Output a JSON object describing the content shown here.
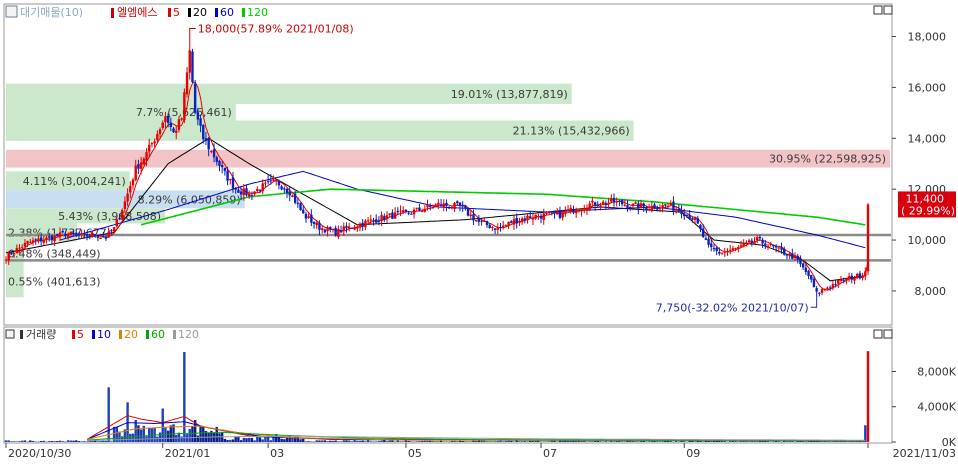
{
  "price_panel": {
    "header_icon": "price-chart-icon",
    "indicator_label": "대기매물(10)",
    "stock_name": "엘엠에스",
    "ma_legend": [
      {
        "period": "5",
        "color": "#e60000"
      },
      {
        "period": "20",
        "color": "#000000"
      },
      {
        "period": "60",
        "color": "#0000cc"
      },
      {
        "period": "120",
        "color": "#00cc00"
      }
    ],
    "y_ticks": [
      "18,000",
      "16,000",
      "14,000",
      "12,000",
      "10,000",
      "8,000"
    ],
    "current_price": "11,400",
    "current_change": "( 29.99%)",
    "max_annotation": "18,000(57.89% 2021/01/08)",
    "min_annotation": "7,750(-32.02% 2021/10/07)",
    "overhang": [
      {
        "label": "19.01% (13,877,819)",
        "low": 15350,
        "high": 16150,
        "width_frac": 0.64,
        "color": "#cce8cc"
      },
      {
        "label": "7.7% (5,626,461)",
        "low": 14700,
        "high": 15350,
        "width_frac": 0.26,
        "color": "#cce8cc"
      },
      {
        "label": "21.13% (15,432,966)",
        "low": 13900,
        "high": 14700,
        "width_frac": 0.71,
        "color": "#cce8cc"
      },
      {
        "label": "30.95% (22,598,925)",
        "low": 12850,
        "high": 13550,
        "width_frac": 1.0,
        "color": "#f2c4c8"
      },
      {
        "label": "4.11% (3,004,241)",
        "low": 11950,
        "high": 12700,
        "width_frac": 0.14,
        "color": "#cce8cc"
      },
      {
        "label": "8.29% (6,050,859)",
        "low": 11250,
        "high": 11950,
        "width_frac": 0.27,
        "color": "#c7dff0"
      },
      {
        "label": "5.43% (3,968,508)",
        "low": 10650,
        "high": 11250,
        "width_frac": 0.18,
        "color": "#cce8cc"
      },
      {
        "label": "2.38% (1,737,677)",
        "low": 9950,
        "high": 10650,
        "width_frac": 0.08,
        "color": "#cce8cc"
      },
      {
        "label": "0.48% (348,449)",
        "low": 9000,
        "high": 9950,
        "width_frac": 0.02,
        "color": "#cce8cc"
      },
      {
        "label": "0.55% (401,613)",
        "low": 7750,
        "high": 9000,
        "width_frac": 0.02,
        "color": "#cce8cc"
      }
    ],
    "support_lines": [
      10200,
      9200
    ]
  },
  "volume_panel": {
    "header_icon": "volume-chart-icon",
    "title": "거래량",
    "ma_legend": [
      {
        "period": "5",
        "color": "#e60000"
      },
      {
        "period": "10",
        "color": "#0000cc"
      },
      {
        "period": "20",
        "color": "#e08000"
      },
      {
        "period": "60",
        "color": "#00aa00"
      },
      {
        "period": "120",
        "color": "#999999"
      }
    ],
    "y_ticks": [
      "8,000K",
      "4,000K",
      "0K"
    ]
  },
  "x_axis": {
    "labels": [
      "2020/10/30",
      "2021/01",
      "03",
      "05",
      "07",
      "09",
      "2021/11/03"
    ]
  },
  "chart_data": {
    "type": "candlestick",
    "x_range": [
      "2020/10/30",
      "2021/11/03"
    ],
    "price_axis": {
      "min": 6700,
      "max": 19200,
      "ticks": [
        8000,
        10000,
        12000,
        14000,
        16000,
        18000
      ]
    },
    "volume_axis": {
      "min": 0,
      "max": 11000,
      "unit": "K",
      "ticks": [
        0,
        4000,
        8000
      ]
    },
    "close_path": [
      [
        0,
        9350
      ],
      [
        8,
        9900
      ],
      [
        15,
        10050
      ],
      [
        22,
        10250
      ],
      [
        28,
        10150
      ],
      [
        33,
        10200
      ],
      [
        37,
        10100
      ],
      [
        40,
        10450
      ],
      [
        44,
        11500
      ],
      [
        48,
        12800
      ],
      [
        52,
        13400
      ],
      [
        56,
        14200
      ],
      [
        59,
        14900
      ],
      [
        62,
        14200
      ],
      [
        65,
        14800
      ],
      [
        68,
        17400
      ],
      [
        70,
        15000
      ],
      [
        73,
        14000
      ],
      [
        77,
        13300
      ],
      [
        81,
        12600
      ],
      [
        85,
        12000
      ],
      [
        90,
        11800
      ],
      [
        95,
        12100
      ],
      [
        100,
        12300
      ],
      [
        105,
        11900
      ],
      [
        110,
        11000
      ],
      [
        116,
        10500
      ],
      [
        122,
        10300
      ],
      [
        130,
        10600
      ],
      [
        140,
        10900
      ],
      [
        150,
        11100
      ],
      [
        160,
        11400
      ],
      [
        168,
        11300
      ],
      [
        175,
        10700
      ],
      [
        182,
        10450
      ],
      [
        188,
        10750
      ],
      [
        195,
        10950
      ],
      [
        205,
        11000
      ],
      [
        215,
        11400
      ],
      [
        225,
        11500
      ],
      [
        232,
        11350
      ],
      [
        238,
        11300
      ],
      [
        245,
        11350
      ],
      [
        250,
        11150
      ],
      [
        255,
        10800
      ],
      [
        260,
        9700
      ],
      [
        264,
        9500
      ],
      [
        270,
        9650
      ],
      [
        278,
        10000
      ],
      [
        285,
        9650
      ],
      [
        292,
        9300
      ],
      [
        297,
        8600
      ],
      [
        300,
        7900
      ],
      [
        303,
        8100
      ],
      [
        308,
        8350
      ],
      [
        312,
        8500
      ],
      [
        316,
        8600
      ],
      [
        318,
        8770
      ],
      [
        319,
        11400
      ]
    ],
    "ma_series": [
      {
        "period": 20,
        "points": [
          [
            0,
            9500
          ],
          [
            40,
            10300
          ],
          [
            60,
            13000
          ],
          [
            75,
            14000
          ],
          [
            90,
            13000
          ],
          [
            110,
            11800
          ],
          [
            130,
            10600
          ],
          [
            170,
            10800
          ],
          [
            220,
            11300
          ],
          [
            250,
            11100
          ],
          [
            262,
            10000
          ],
          [
            280,
            9800
          ],
          [
            295,
            9200
          ],
          [
            305,
            8400
          ],
          [
            318,
            8600
          ]
        ]
      },
      {
        "period": 60,
        "points": [
          [
            20,
            10000
          ],
          [
            60,
            11200
          ],
          [
            90,
            12200
          ],
          [
            110,
            12700
          ],
          [
            130,
            12000
          ],
          [
            160,
            11300
          ],
          [
            200,
            11100
          ],
          [
            240,
            11300
          ],
          [
            270,
            10900
          ],
          [
            300,
            10200
          ],
          [
            318,
            9700
          ]
        ]
      },
      {
        "period": 120,
        "points": [
          [
            50,
            10600
          ],
          [
            90,
            11700
          ],
          [
            120,
            12000
          ],
          [
            160,
            11900
          ],
          [
            200,
            11800
          ],
          [
            240,
            11500
          ],
          [
            270,
            11200
          ],
          [
            300,
            10900
          ],
          [
            318,
            10600
          ]
        ]
      }
    ],
    "volume_spikes": [
      [
        38,
        6200
      ],
      [
        45,
        4500
      ],
      [
        48,
        2500
      ],
      [
        58,
        3800
      ],
      [
        62,
        2000
      ],
      [
        66,
        10200
      ],
      [
        70,
        2500
      ],
      [
        73,
        1800
      ],
      [
        100,
        900
      ],
      [
        140,
        300
      ],
      [
        235,
        300
      ],
      [
        318,
        1900
      ],
      [
        319,
        10300
      ]
    ]
  }
}
